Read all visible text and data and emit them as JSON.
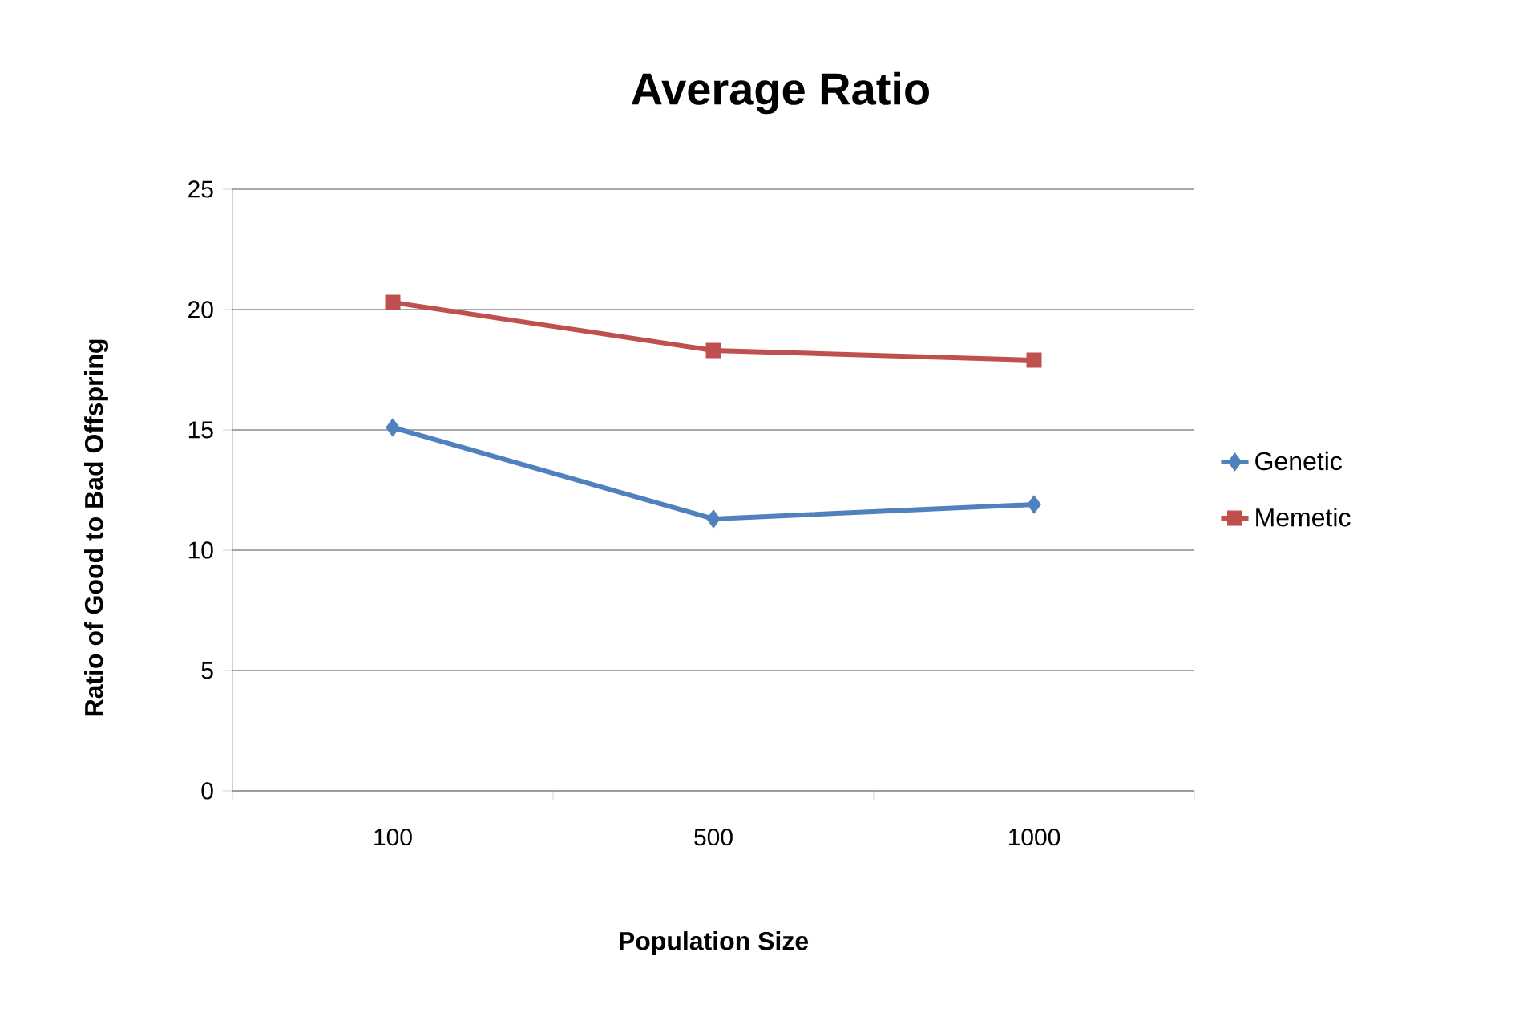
{
  "chart_data": {
    "type": "line",
    "title": "Average Ratio",
    "xlabel": "Population Size",
    "ylabel": "Ratio of Good to Bad Offspring",
    "categories": [
      "100",
      "500",
      "1000"
    ],
    "series": [
      {
        "name": "Genetic",
        "color": "#4f81bd",
        "marker": "diamond",
        "values": [
          15.1,
          11.3,
          11.9
        ]
      },
      {
        "name": "Memetic",
        "color": "#c0504d",
        "marker": "square",
        "values": [
          20.3,
          18.3,
          17.9
        ]
      }
    ],
    "ylim": [
      0,
      25
    ],
    "yticks": [
      0,
      5,
      10,
      15,
      20,
      25
    ],
    "grid": "y",
    "legend": "right"
  }
}
